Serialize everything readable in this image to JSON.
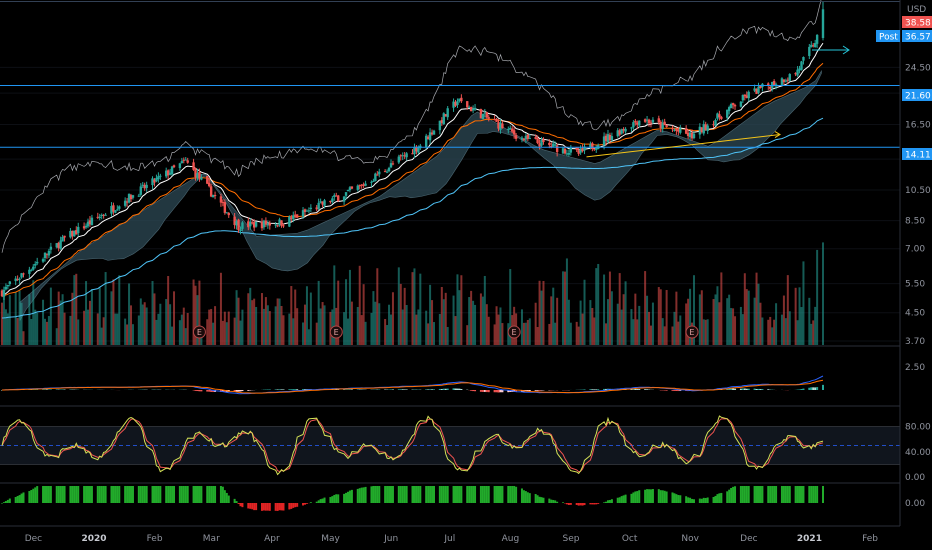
{
  "currency": "USD",
  "post_label": "Post",
  "price_tags": {
    "top": "38.58",
    "post": "36.57",
    "level1": "21.60",
    "level2": "14.11"
  },
  "colors": {
    "bull": "#26a69a",
    "bear": "#ef5350",
    "level_line": "#2196f3",
    "tag_blue": "#2196f3",
    "tag_red": "#ef5350",
    "ema_fast": "#ffffff",
    "ema_slow": "#ff6d00",
    "ma_long": "#4fc3f7",
    "cloud": "#2d4a55",
    "macd_line": "#2962ff",
    "signal_line": "#ff6d00",
    "stoch_k": "#d4e157",
    "stoch_d": "#ef5350",
    "trend_arrow": "#f5c518"
  },
  "chart_data": {
    "type": "candlestick",
    "price_axis": {
      "scale": "log",
      "ticks": [
        3.7,
        4.5,
        5.5,
        7.0,
        8.5,
        10.5,
        13.0,
        16.5,
        20.5,
        24.5
      ],
      "tick_labels": [
        "3.70",
        "4.50",
        "5.50",
        "7.00",
        "8.50",
        "10.50",
        "",
        "16.50",
        "",
        "24.50"
      ],
      "range": [
        3.6,
        39
      ]
    },
    "time_axis": {
      "labels": [
        "Dec",
        "2020",
        "Feb",
        "Mar",
        "Apr",
        "May",
        "Jun",
        "Jul",
        "Aug",
        "Sep",
        "Oct",
        "Nov",
        "Dec",
        "2021",
        "Feb"
      ],
      "bold_labels": [
        "2020",
        "2021"
      ],
      "first_bar": "2019-11-18",
      "last_bar": "2021-01-11"
    },
    "key_prices": [
      {
        "date": "2019-11-18",
        "close": 5.2
      },
      {
        "date": "2019-12-20",
        "close": 7.5
      },
      {
        "date": "2020-02-20",
        "close": 12.8
      },
      {
        "date": "2020-03-18",
        "close": 8.2
      },
      {
        "date": "2020-04-10",
        "close": 8.4
      },
      {
        "date": "2020-05-20",
        "close": 10.8
      },
      {
        "date": "2020-06-20",
        "close": 14.5
      },
      {
        "date": "2020-07-08",
        "close": 19.5
      },
      {
        "date": "2020-08-10",
        "close": 15.0
      },
      {
        "date": "2020-09-08",
        "close": 13.5
      },
      {
        "date": "2020-10-10",
        "close": 17.2
      },
      {
        "date": "2020-11-05",
        "close": 15.2
      },
      {
        "date": "2020-12-05",
        "close": 20.5
      },
      {
        "date": "2020-12-28",
        "close": 23.5
      },
      {
        "date": "2021-01-08",
        "close": 30.0
      },
      {
        "date": "2021-01-11",
        "close": 36.57
      }
    ],
    "horizontal_levels": [
      21.6,
      14.11,
      38.58
    ],
    "earnings_markers": [
      "2020-02-27",
      "2020-05-07",
      "2020-08-06",
      "2020-11-05"
    ],
    "earnings_label": "E",
    "macd_axis": {
      "ticks": [
        2.5
      ],
      "tick_labels": [
        "2.50"
      ]
    },
    "stoch_axis": {
      "ticks": [
        80,
        40,
        0
      ],
      "tick_labels": [
        "80.00",
        "40.00",
        "0.00"
      ],
      "bands": [
        20,
        50,
        80
      ]
    },
    "osc_axis": {
      "ticks": [
        0
      ],
      "tick_labels": [
        "0.00"
      ]
    }
  }
}
